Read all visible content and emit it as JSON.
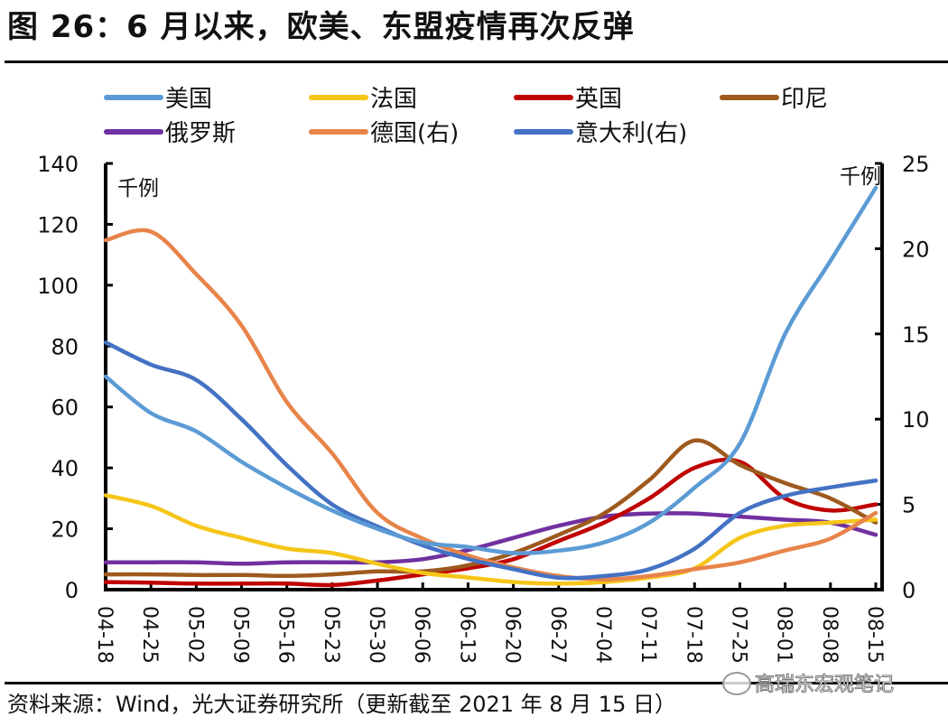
{
  "header": {
    "title": "图 26：6 月以来，欧美、东盟疫情再次反弹"
  },
  "footer": {
    "source": "资料来源：Wind，光大证券研究所（更新截至 2021 年 8 月 15 日）",
    "watermark": "高瑞东宏观笔记",
    "watermark_icon": "wechat-icon"
  },
  "chart_data": {
    "type": "line",
    "title": "图 26：6 月以来，欧美、东盟疫情再次反弹",
    "xlabel": "",
    "ylabel_left": "千例",
    "ylabel_right": "千例",
    "ylim_left": [
      0,
      140
    ],
    "ylim_right": [
      0,
      25
    ],
    "yticks_left": [
      0,
      20,
      40,
      60,
      80,
      100,
      120,
      140
    ],
    "yticks_right": [
      0,
      5,
      10,
      15,
      20,
      25
    ],
    "grid": false,
    "legend_position": "top",
    "x": [
      "04-18",
      "04-25",
      "05-02",
      "05-09",
      "05-16",
      "05-23",
      "05-30",
      "06-06",
      "06-13",
      "06-20",
      "06-27",
      "07-04",
      "07-11",
      "07-18",
      "07-25",
      "08-01",
      "08-08",
      "08-15"
    ],
    "xtick_labels": [
      "04-18",
      "04-25",
      "05-02",
      "05-09",
      "05-16",
      "05-23",
      "05-30",
      "06-06",
      "06-13",
      "06-20",
      "06-27",
      "07-04",
      "07-11",
      "07-18",
      "07-25",
      "08-01",
      "08-08",
      "08-15"
    ],
    "series": [
      {
        "name": "美国",
        "axis": "left",
        "color": "#5B9BD5",
        "values": [
          70,
          58,
          52,
          42,
          33.5,
          26,
          20,
          15.5,
          14,
          12,
          12.8,
          15.5,
          22,
          33.5,
          48,
          84,
          108,
          132
        ]
      },
      {
        "name": "法国",
        "axis": "left",
        "color": "#F5C518",
        "values": [
          31,
          27.5,
          21,
          17,
          13.5,
          12,
          8.5,
          5.5,
          4,
          2.5,
          2,
          2.5,
          4,
          7,
          17,
          21,
          22,
          23
        ]
      },
      {
        "name": "英国",
        "axis": "left",
        "color": "#C00000",
        "values": [
          2.5,
          2.3,
          2,
          2,
          2,
          1.5,
          3,
          5,
          7,
          10,
          16,
          22,
          30,
          40,
          42,
          30,
          26,
          28
        ]
      },
      {
        "name": "印尼",
        "axis": "left",
        "color": "#9E5A1E",
        "values": [
          5,
          5,
          4.8,
          4.8,
          4.5,
          5,
          6,
          6,
          8,
          12,
          18,
          25,
          36,
          49,
          41,
          35,
          30,
          22
        ]
      },
      {
        "name": "俄罗斯",
        "axis": "left",
        "color": "#7030A0",
        "values": [
          9,
          9,
          9,
          8.5,
          9,
          9,
          9,
          10,
          13,
          17,
          21,
          24,
          25,
          25,
          24,
          23,
          22,
          18
        ]
      },
      {
        "name": "德国(右)",
        "axis": "right",
        "color": "#E8844A",
        "values": [
          20.5,
          21,
          18.5,
          15.5,
          11,
          8,
          4.5,
          3,
          2,
          1.3,
          0.8,
          0.6,
          0.8,
          1.2,
          1.6,
          2.3,
          3,
          4.5
        ]
      },
      {
        "name": "意大利(右)",
        "axis": "right",
        "color": "#4472C4",
        "values": [
          14.5,
          13.2,
          12.3,
          10,
          7.3,
          5,
          3.7,
          2.6,
          1.8,
          1.2,
          0.7,
          0.8,
          1.2,
          2.4,
          4.5,
          5.5,
          6,
          6.4
        ]
      }
    ]
  }
}
